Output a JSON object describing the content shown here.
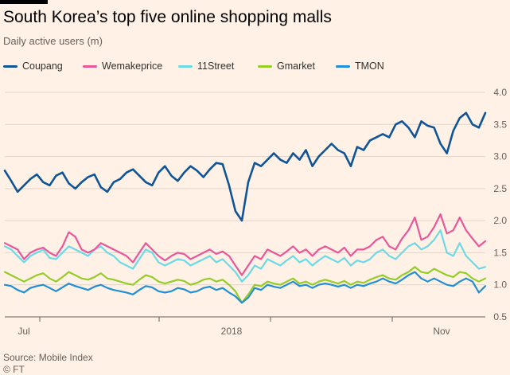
{
  "header": {
    "title": "South Korea’s top five online shopping malls",
    "subtitle": "Daily active users (m)"
  },
  "footer": {
    "source": "Source: Mobile Index",
    "credit": "© FT"
  },
  "chart_data": {
    "type": "line",
    "title": "South Korea’s top five online shopping malls",
    "subtitle": "Daily active users (m)",
    "xlabel": "",
    "ylabel": "",
    "ylim": [
      0.5,
      4.0
    ],
    "yticks": [
      "0.5",
      "1.0",
      "1.5",
      "2.0",
      "2.5",
      "3.0",
      "3.5",
      "4.0"
    ],
    "y_axis_position": "right",
    "grid": true,
    "legend_position": "top",
    "xtick_labels": [
      "Jul",
      "2018",
      "Nov"
    ],
    "series": [
      {
        "name": "Coupang",
        "color": "#0f5499",
        "values": [
          2.78,
          2.62,
          2.45,
          2.55,
          2.65,
          2.72,
          2.6,
          2.55,
          2.7,
          2.75,
          2.58,
          2.5,
          2.6,
          2.68,
          2.72,
          2.52,
          2.45,
          2.6,
          2.65,
          2.75,
          2.8,
          2.7,
          2.6,
          2.55,
          2.75,
          2.85,
          2.7,
          2.62,
          2.75,
          2.85,
          2.78,
          2.68,
          2.8,
          2.9,
          2.88,
          2.55,
          2.15,
          2.0,
          2.6,
          2.9,
          2.85,
          2.95,
          3.05,
          2.95,
          2.9,
          3.05,
          2.95,
          3.1,
          2.85,
          3.0,
          3.1,
          3.2,
          3.1,
          3.05,
          2.85,
          3.15,
          3.1,
          3.25,
          3.3,
          3.35,
          3.3,
          3.5,
          3.55,
          3.45,
          3.3,
          3.55,
          3.48,
          3.45,
          3.2,
          3.05,
          3.4,
          3.6,
          3.68,
          3.5,
          3.45,
          3.68
        ]
      },
      {
        "name": "Wemakeprice",
        "color": "#e8579a",
        "values": [
          1.65,
          1.6,
          1.55,
          1.4,
          1.5,
          1.55,
          1.58,
          1.5,
          1.45,
          1.6,
          1.82,
          1.75,
          1.55,
          1.5,
          1.55,
          1.65,
          1.6,
          1.55,
          1.5,
          1.45,
          1.35,
          1.5,
          1.65,
          1.55,
          1.45,
          1.38,
          1.45,
          1.5,
          1.48,
          1.4,
          1.45,
          1.5,
          1.55,
          1.48,
          1.52,
          1.45,
          1.3,
          1.15,
          1.3,
          1.45,
          1.4,
          1.55,
          1.5,
          1.45,
          1.52,
          1.6,
          1.5,
          1.55,
          1.45,
          1.55,
          1.6,
          1.55,
          1.5,
          1.58,
          1.45,
          1.55,
          1.55,
          1.6,
          1.7,
          1.75,
          1.6,
          1.55,
          1.72,
          1.85,
          2.05,
          1.7,
          1.75,
          1.9,
          2.1,
          1.8,
          1.85,
          2.05,
          1.85,
          1.72,
          1.6,
          1.68
        ]
      },
      {
        "name": "11Street",
        "color": "#6cdae6",
        "values": [
          1.6,
          1.55,
          1.45,
          1.35,
          1.45,
          1.5,
          1.55,
          1.42,
          1.4,
          1.5,
          1.6,
          1.55,
          1.5,
          1.45,
          1.55,
          1.6,
          1.5,
          1.45,
          1.35,
          1.3,
          1.25,
          1.4,
          1.55,
          1.5,
          1.35,
          1.3,
          1.35,
          1.4,
          1.38,
          1.3,
          1.35,
          1.4,
          1.45,
          1.35,
          1.4,
          1.3,
          1.2,
          1.05,
          1.15,
          1.3,
          1.25,
          1.4,
          1.35,
          1.3,
          1.38,
          1.45,
          1.35,
          1.4,
          1.3,
          1.38,
          1.45,
          1.4,
          1.35,
          1.42,
          1.3,
          1.38,
          1.35,
          1.4,
          1.5,
          1.55,
          1.45,
          1.4,
          1.5,
          1.6,
          1.65,
          1.55,
          1.6,
          1.7,
          1.85,
          1.5,
          1.45,
          1.65,
          1.45,
          1.35,
          1.25,
          1.28
        ]
      },
      {
        "name": "Gmarket",
        "color": "#96cc28",
        "values": [
          1.2,
          1.15,
          1.1,
          1.05,
          1.1,
          1.15,
          1.18,
          1.1,
          1.05,
          1.12,
          1.2,
          1.15,
          1.1,
          1.08,
          1.12,
          1.18,
          1.1,
          1.08,
          1.05,
          1.02,
          1.0,
          1.08,
          1.15,
          1.12,
          1.05,
          1.02,
          1.05,
          1.08,
          1.06,
          1.0,
          1.03,
          1.08,
          1.1,
          1.05,
          1.08,
          1.0,
          0.9,
          0.72,
          0.85,
          1.0,
          0.98,
          1.05,
          1.02,
          1.0,
          1.05,
          1.1,
          1.02,
          1.05,
          1.0,
          1.05,
          1.08,
          1.05,
          1.02,
          1.06,
          1.0,
          1.05,
          1.03,
          1.08,
          1.12,
          1.15,
          1.1,
          1.08,
          1.15,
          1.2,
          1.28,
          1.2,
          1.18,
          1.25,
          1.2,
          1.15,
          1.12,
          1.2,
          1.18,
          1.1,
          1.05,
          1.1
        ]
      },
      {
        "name": "TMON",
        "color": "#1f8fd6",
        "values": [
          1.0,
          0.98,
          0.92,
          0.88,
          0.95,
          0.98,
          1.0,
          0.95,
          0.9,
          0.96,
          1.02,
          0.98,
          0.95,
          0.92,
          0.97,
          1.0,
          0.95,
          0.92,
          0.9,
          0.88,
          0.85,
          0.92,
          0.98,
          0.96,
          0.9,
          0.88,
          0.9,
          0.95,
          0.93,
          0.88,
          0.9,
          0.95,
          0.97,
          0.92,
          0.95,
          0.88,
          0.82,
          0.72,
          0.8,
          0.95,
          0.92,
          1.0,
          0.97,
          0.95,
          1.0,
          1.05,
          0.98,
          1.0,
          0.95,
          1.0,
          1.02,
          1.0,
          0.97,
          1.0,
          0.95,
          1.0,
          0.98,
          1.02,
          1.05,
          1.1,
          1.05,
          1.02,
          1.08,
          1.15,
          1.2,
          1.1,
          1.05,
          1.1,
          1.05,
          1.0,
          0.98,
          1.05,
          1.1,
          1.05,
          0.88,
          0.98
        ]
      }
    ]
  }
}
